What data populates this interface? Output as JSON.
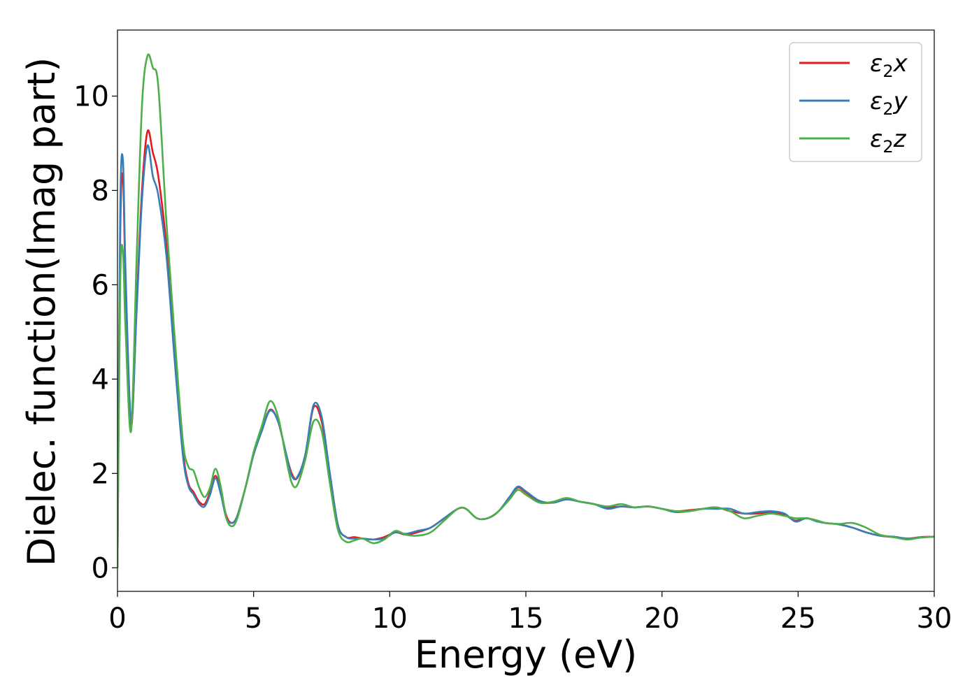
{
  "chart_data": {
    "type": "line",
    "title": "",
    "xlabel": "Energy (eV)",
    "ylabel": "Dielec. function(Imag part)",
    "xlim": [
      0,
      30
    ],
    "ylim": [
      -0.5,
      11.4
    ],
    "xticks": [
      0,
      5,
      10,
      15,
      20,
      25,
      30
    ],
    "xtick_labels": [
      "0",
      "5",
      "10",
      "15",
      "20",
      "25",
      "30"
    ],
    "yticks": [
      0,
      2,
      4,
      6,
      8,
      10
    ],
    "ytick_labels": [
      "0",
      "2",
      "4",
      "6",
      "8",
      "10"
    ],
    "grid": false,
    "legend_position": "top-right",
    "series": [
      {
        "name": "ε2x",
        "label_main": "ε",
        "label_sub": "2",
        "label_tail": "x",
        "color": "#e41a1c",
        "x": [
          0,
          0.1,
          0.2,
          0.3,
          0.5,
          0.7,
          0.9,
          1.1,
          1.3,
          1.5,
          1.8,
          2.1,
          2.4,
          2.6,
          2.8,
          3.0,
          3.2,
          3.4,
          3.6,
          3.8,
          4.0,
          4.2,
          4.4,
          4.7,
          5.0,
          5.3,
          5.6,
          5.9,
          6.2,
          6.4,
          6.6,
          6.9,
          7.2,
          7.5,
          7.8,
          8.1,
          8.4,
          8.7,
          9.0,
          9.4,
          9.8,
          10.2,
          10.6,
          11.0,
          11.5,
          12.0,
          12.5,
          12.8,
          13.2,
          13.6,
          14.0,
          14.4,
          14.7,
          15.0,
          15.5,
          16.0,
          16.5,
          17.0,
          17.5,
          18.0,
          18.5,
          19.0,
          19.5,
          20.0,
          20.5,
          21.0,
          21.5,
          22.0,
          22.5,
          23.0,
          23.5,
          24.0,
          24.5,
          24.9,
          25.3,
          25.7,
          26.0,
          26.5,
          27.0,
          27.5,
          28.0,
          28.5,
          29.0,
          29.5,
          30.0
        ],
        "y": [
          0.0,
          7.0,
          8.3,
          6.0,
          3.0,
          5.5,
          8.0,
          9.25,
          8.8,
          8.3,
          6.8,
          4.5,
          2.5,
          1.8,
          1.6,
          1.4,
          1.35,
          1.6,
          1.95,
          1.6,
          1.1,
          0.95,
          1.1,
          1.7,
          2.4,
          2.9,
          3.35,
          3.1,
          2.4,
          2.0,
          1.9,
          2.4,
          3.4,
          3.1,
          2.0,
          0.9,
          0.65,
          0.65,
          0.62,
          0.6,
          0.65,
          0.75,
          0.7,
          0.75,
          0.85,
          1.05,
          1.25,
          1.25,
          1.05,
          1.05,
          1.2,
          1.5,
          1.7,
          1.6,
          1.4,
          1.38,
          1.45,
          1.4,
          1.35,
          1.28,
          1.3,
          1.28,
          1.3,
          1.25,
          1.2,
          1.22,
          1.25,
          1.28,
          1.2,
          1.15,
          1.15,
          1.18,
          1.12,
          1.0,
          1.05,
          1.0,
          0.95,
          0.92,
          0.85,
          0.75,
          0.68,
          0.65,
          0.62,
          0.65,
          0.66
        ]
      },
      {
        "name": "ε2y",
        "label_main": "ε",
        "label_sub": "2",
        "label_tail": "y",
        "color": "#377eb8",
        "x": [
          0,
          0.1,
          0.2,
          0.3,
          0.5,
          0.7,
          0.9,
          1.1,
          1.3,
          1.5,
          1.8,
          2.1,
          2.4,
          2.6,
          2.8,
          3.0,
          3.2,
          3.4,
          3.6,
          3.8,
          4.0,
          4.2,
          4.4,
          4.7,
          5.0,
          5.3,
          5.6,
          5.9,
          6.2,
          6.4,
          6.6,
          6.9,
          7.2,
          7.5,
          7.8,
          8.1,
          8.4,
          8.7,
          9.0,
          9.4,
          9.8,
          10.2,
          10.6,
          11.0,
          11.5,
          12.0,
          12.5,
          12.8,
          13.2,
          13.6,
          14.0,
          14.4,
          14.7,
          15.0,
          15.5,
          16.0,
          16.5,
          17.0,
          17.5,
          18.0,
          18.5,
          19.0,
          19.5,
          20.0,
          20.5,
          21.0,
          21.5,
          22.0,
          22.5,
          23.0,
          23.5,
          24.0,
          24.5,
          24.9,
          25.3,
          25.7,
          26.0,
          26.5,
          27.0,
          27.5,
          28.0,
          28.5,
          29.0,
          29.5,
          30.0
        ],
        "y": [
          0.0,
          7.5,
          8.65,
          6.2,
          3.1,
          5.4,
          7.8,
          8.95,
          8.3,
          7.9,
          6.6,
          4.4,
          2.4,
          1.75,
          1.55,
          1.35,
          1.3,
          1.55,
          1.9,
          1.55,
          1.05,
          0.95,
          1.1,
          1.7,
          2.4,
          2.9,
          3.33,
          3.1,
          2.4,
          1.95,
          1.92,
          2.4,
          3.45,
          3.2,
          2.0,
          0.9,
          0.65,
          0.62,
          0.62,
          0.6,
          0.62,
          0.75,
          0.72,
          0.78,
          0.85,
          1.05,
          1.25,
          1.25,
          1.05,
          1.05,
          1.2,
          1.5,
          1.72,
          1.62,
          1.42,
          1.38,
          1.45,
          1.4,
          1.35,
          1.25,
          1.3,
          1.28,
          1.3,
          1.25,
          1.18,
          1.2,
          1.25,
          1.25,
          1.25,
          1.15,
          1.18,
          1.2,
          1.15,
          0.98,
          1.05,
          0.98,
          0.95,
          0.92,
          0.85,
          0.75,
          0.68,
          0.66,
          0.62,
          0.64,
          0.66
        ]
      },
      {
        "name": "ε2z",
        "label_main": "ε",
        "label_sub": "2",
        "label_tail": "z",
        "color": "#4daf4a",
        "x": [
          0,
          0.1,
          0.2,
          0.3,
          0.5,
          0.7,
          0.9,
          1.1,
          1.3,
          1.5,
          1.8,
          2.1,
          2.4,
          2.6,
          2.8,
          3.0,
          3.2,
          3.4,
          3.6,
          3.8,
          4.0,
          4.2,
          4.4,
          4.7,
          5.0,
          5.3,
          5.6,
          5.9,
          6.2,
          6.4,
          6.6,
          6.9,
          7.2,
          7.5,
          7.8,
          8.1,
          8.4,
          8.7,
          9.0,
          9.4,
          9.8,
          10.2,
          10.6,
          11.0,
          11.5,
          12.0,
          12.5,
          12.8,
          13.2,
          13.6,
          14.0,
          14.4,
          14.7,
          15.0,
          15.5,
          16.0,
          16.5,
          17.0,
          17.5,
          18.0,
          18.5,
          19.0,
          19.5,
          20.0,
          20.5,
          21.0,
          21.5,
          22.0,
          22.5,
          23.0,
          23.5,
          24.0,
          24.5,
          24.9,
          25.3,
          25.7,
          26.0,
          26.5,
          27.0,
          27.5,
          28.0,
          28.5,
          29.0,
          29.5,
          30.0
        ],
        "y": [
          0.0,
          6.0,
          6.7,
          5.0,
          2.9,
          6.5,
          9.8,
          10.85,
          10.6,
          10.2,
          7.3,
          4.9,
          2.7,
          2.15,
          2.05,
          1.7,
          1.5,
          1.7,
          2.1,
          1.7,
          1.05,
          0.88,
          1.05,
          1.7,
          2.45,
          3.0,
          3.53,
          3.2,
          2.3,
          1.8,
          1.75,
          2.3,
          3.1,
          2.9,
          1.8,
          0.8,
          0.55,
          0.58,
          0.62,
          0.52,
          0.6,
          0.78,
          0.7,
          0.68,
          0.75,
          1.0,
          1.25,
          1.25,
          1.05,
          1.05,
          1.2,
          1.45,
          1.65,
          1.55,
          1.38,
          1.4,
          1.48,
          1.4,
          1.35,
          1.3,
          1.35,
          1.28,
          1.3,
          1.25,
          1.2,
          1.2,
          1.25,
          1.28,
          1.2,
          1.05,
          1.1,
          1.15,
          1.1,
          1.05,
          1.05,
          1.0,
          0.95,
          0.93,
          0.95,
          0.85,
          0.7,
          0.65,
          0.6,
          0.64,
          0.66
        ]
      }
    ]
  }
}
